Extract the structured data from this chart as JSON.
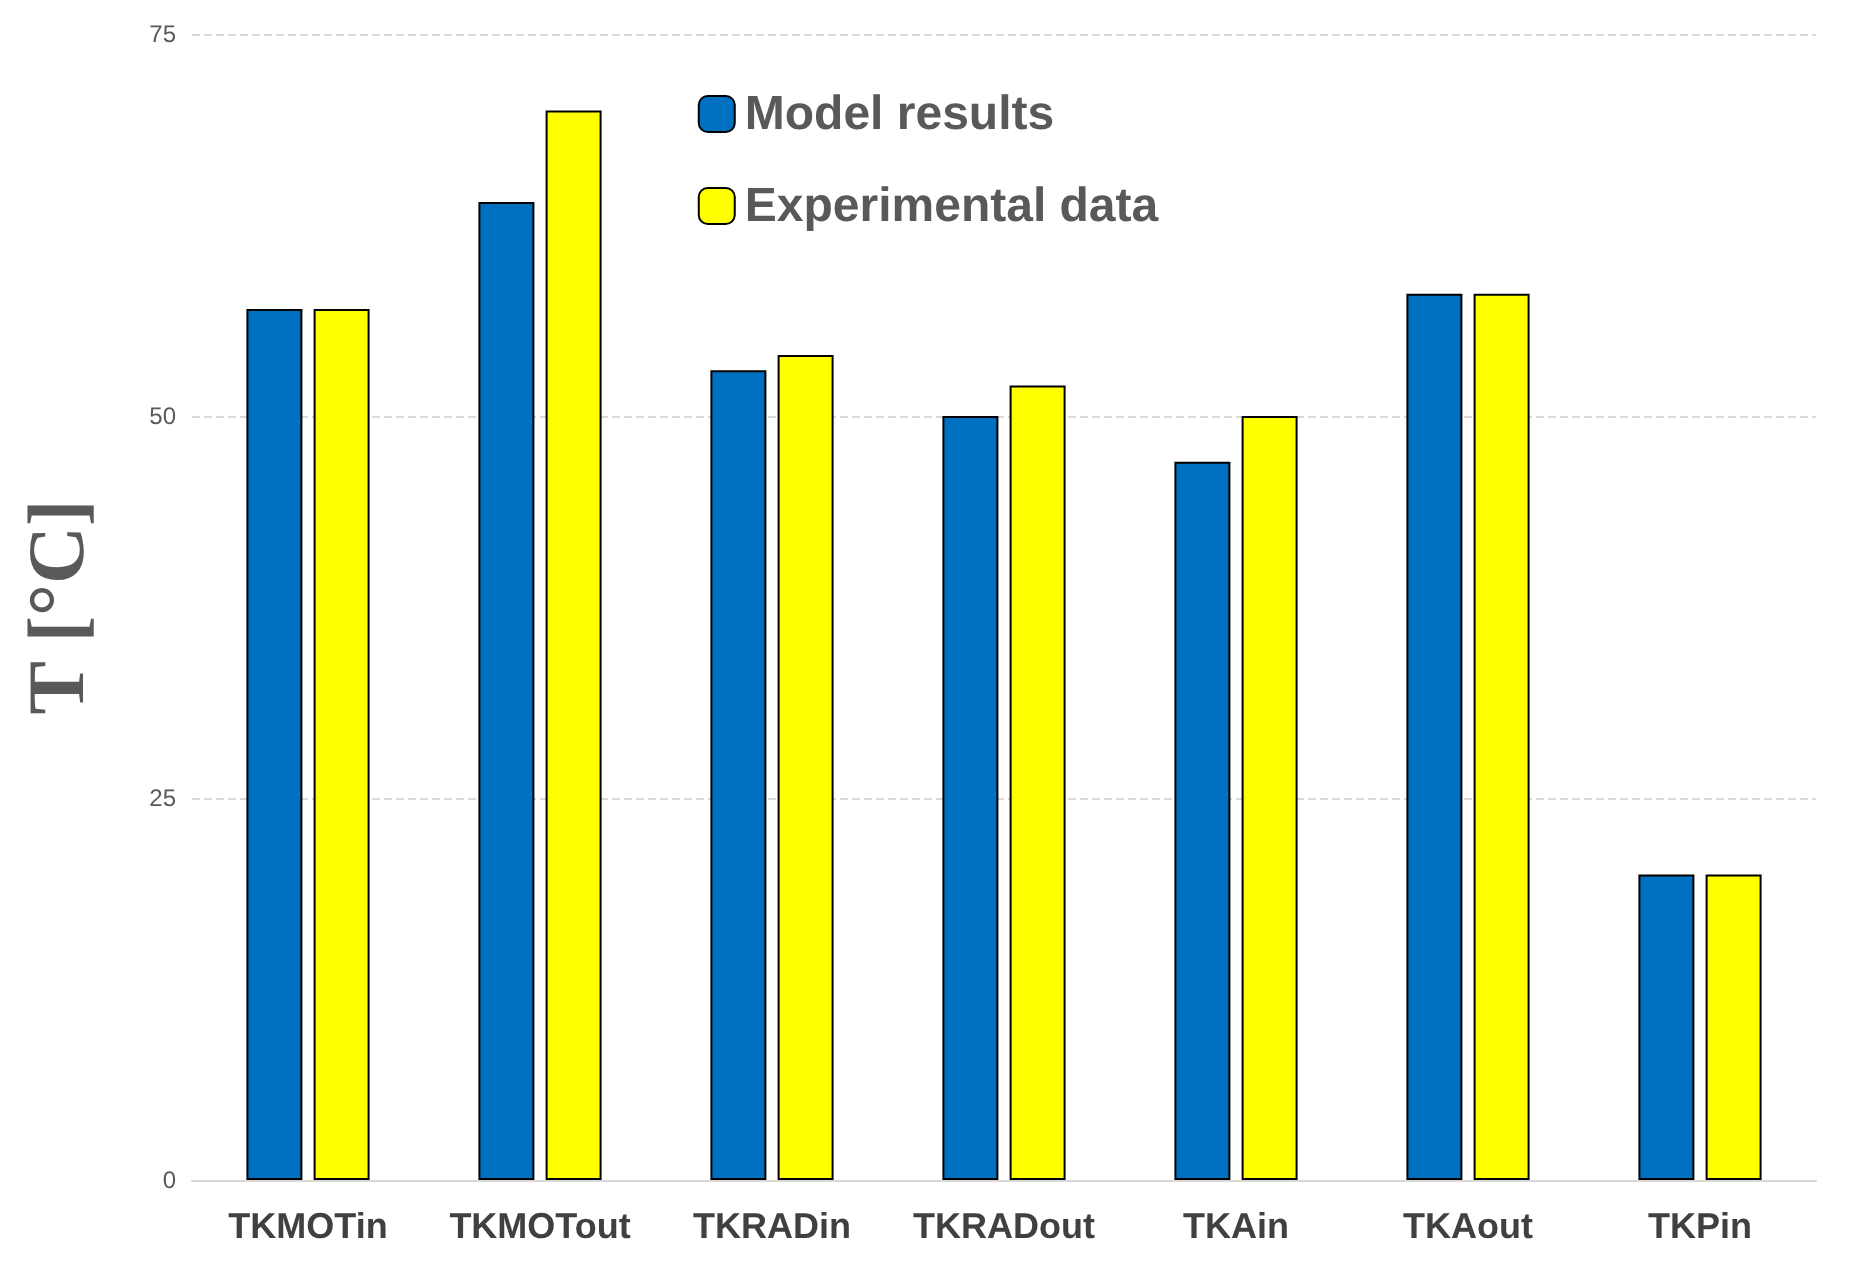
{
  "chart_data": {
    "type": "bar",
    "ylabel": "T [°C]",
    "categories": [
      "TKMOTin",
      "TKMOTout",
      "TKRADin",
      "TKRADout",
      "TKAin",
      "TKAout",
      "TKPin"
    ],
    "series": [
      {
        "name": "Model results",
        "color": "#0070c0",
        "values": [
          57,
          64,
          53,
          50,
          47,
          58,
          20
        ]
      },
      {
        "name": "Experimental data",
        "color": "#ffff00",
        "values": [
          57,
          70,
          54,
          52,
          50,
          58,
          20
        ]
      }
    ],
    "ylim": [
      0,
      75
    ],
    "yticks": [
      0,
      25,
      50,
      75
    ],
    "grid": "y",
    "legend": "top"
  }
}
